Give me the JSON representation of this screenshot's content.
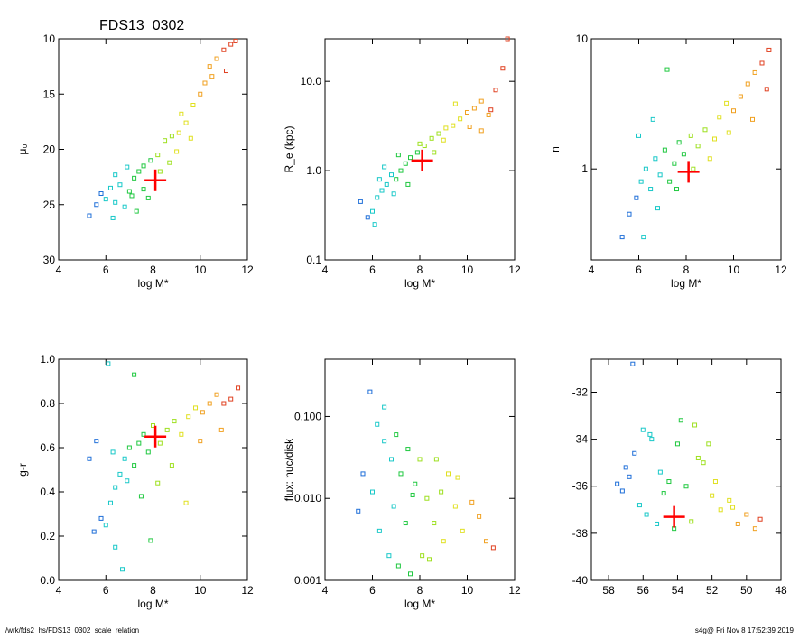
{
  "title": "FDS13_0302",
  "footer": {
    "path": "/wrk/fds2_hs/FDS13_0302_scale_relation",
    "stamp": "s4g@  Fri Nov  8 17:52:39 2019"
  },
  "colors": {
    "marker": "#ff0000",
    "palette": [
      "#2a2aa8",
      "#1e6ed8",
      "#18c8c8",
      "#20c840",
      "#9ee020",
      "#e0e020",
      "#f0a020",
      "#e04020"
    ]
  },
  "chart_data": [
    {
      "type": "scatter",
      "xlabel": "log M*",
      "ylabel": "μ₀",
      "xlim": [
        4,
        12
      ],
      "ylim": [
        30,
        10
      ],
      "yscale": "linear",
      "reversed_y": true,
      "xticks": [
        "4",
        "6",
        "8",
        "10",
        "12"
      ],
      "yticks": [
        "10",
        "15",
        "20",
        "25",
        "30"
      ],
      "ytick_values": [
        10,
        15,
        20,
        25,
        30
      ],
      "marker": {
        "x": 8.1,
        "y": 22.8
      },
      "points": [
        [
          6.0,
          24.5
        ],
        [
          6.2,
          23.5
        ],
        [
          6.4,
          24.8
        ],
        [
          6.6,
          23.2
        ],
        [
          6.8,
          25.2
        ],
        [
          7.0,
          23.8
        ],
        [
          7.2,
          22.6
        ],
        [
          7.4,
          22.0
        ],
        [
          7.6,
          21.5
        ],
        [
          7.9,
          21.0
        ],
        [
          8.2,
          20.5
        ],
        [
          8.5,
          19.2
        ],
        [
          8.8,
          18.8
        ],
        [
          9.1,
          18.5
        ],
        [
          9.4,
          17.6
        ],
        [
          9.7,
          16.0
        ],
        [
          10.0,
          15.0
        ],
        [
          10.2,
          14.0
        ],
        [
          10.4,
          12.5
        ],
        [
          10.7,
          11.8
        ],
        [
          11.0,
          11.0
        ],
        [
          11.3,
          10.5
        ],
        [
          11.5,
          10.2
        ],
        [
          9.2,
          16.8
        ],
        [
          5.8,
          24.0
        ],
        [
          5.6,
          25.0
        ],
        [
          5.3,
          26.0
        ],
        [
          6.3,
          26.2
        ],
        [
          7.1,
          24.2
        ],
        [
          7.6,
          23.6
        ],
        [
          8.3,
          22.0
        ],
        [
          8.7,
          21.2
        ],
        [
          6.9,
          21.6
        ],
        [
          6.4,
          22.3
        ],
        [
          7.3,
          25.6
        ],
        [
          7.8,
          24.4
        ],
        [
          9.0,
          20.2
        ],
        [
          9.6,
          19.0
        ],
        [
          10.5,
          13.4
        ],
        [
          11.1,
          12.9
        ]
      ]
    },
    {
      "type": "scatter",
      "xlabel": "log M*",
      "ylabel": "R_e (kpc)",
      "xlim": [
        4,
        12
      ],
      "ylim": [
        0.1,
        30
      ],
      "yscale": "log",
      "xticks": [
        "4",
        "6",
        "8",
        "10",
        "12"
      ],
      "yticks": [
        "0.1",
        "1.0",
        "10.0"
      ],
      "ytick_values": [
        0.1,
        1.0,
        10.0
      ],
      "marker": {
        "x": 8.1,
        "y": 1.3
      },
      "points": [
        [
          6.0,
          0.35
        ],
        [
          6.2,
          0.5
        ],
        [
          6.4,
          0.6
        ],
        [
          6.6,
          0.7
        ],
        [
          6.8,
          0.9
        ],
        [
          7.0,
          0.8
        ],
        [
          7.2,
          1.0
        ],
        [
          7.4,
          1.2
        ],
        [
          7.6,
          1.4
        ],
        [
          7.9,
          1.6
        ],
        [
          8.2,
          1.9
        ],
        [
          8.5,
          2.3
        ],
        [
          8.8,
          2.6
        ],
        [
          9.1,
          3.0
        ],
        [
          9.4,
          3.2
        ],
        [
          9.7,
          3.8
        ],
        [
          10.0,
          4.5
        ],
        [
          10.3,
          5.0
        ],
        [
          10.6,
          6.0
        ],
        [
          10.9,
          4.2
        ],
        [
          11.2,
          8.0
        ],
        [
          11.5,
          14.0
        ],
        [
          11.7,
          30.0
        ],
        [
          5.5,
          0.45
        ],
        [
          5.8,
          0.3
        ],
        [
          6.1,
          0.25
        ],
        [
          6.5,
          1.1
        ],
        [
          7.1,
          1.5
        ],
        [
          7.5,
          0.7
        ],
        [
          8.0,
          2.0
        ],
        [
          8.6,
          1.6
        ],
        [
          9.0,
          2.2
        ],
        [
          9.5,
          5.6
        ],
        [
          10.1,
          3.1
        ],
        [
          10.6,
          2.8
        ],
        [
          11.0,
          4.8
        ],
        [
          6.3,
          0.8
        ],
        [
          6.9,
          0.55
        ]
      ]
    },
    {
      "type": "scatter",
      "xlabel": "log M*",
      "ylabel": "n",
      "xlim": [
        4,
        12
      ],
      "ylim": [
        0.2,
        10
      ],
      "yscale": "log",
      "xticks": [
        "4",
        "6",
        "8",
        "10",
        "12"
      ],
      "yticks": [
        "1",
        "10"
      ],
      "ytick_values": [
        1,
        10
      ],
      "marker": {
        "x": 8.1,
        "y": 0.95
      },
      "points": [
        [
          5.3,
          0.3
        ],
        [
          5.6,
          0.45
        ],
        [
          5.9,
          0.6
        ],
        [
          6.1,
          0.8
        ],
        [
          6.3,
          1.0
        ],
        [
          6.5,
          0.7
        ],
        [
          6.7,
          1.2
        ],
        [
          6.9,
          0.9
        ],
        [
          7.1,
          1.4
        ],
        [
          7.3,
          0.8
        ],
        [
          7.5,
          1.1
        ],
        [
          7.7,
          1.6
        ],
        [
          7.9,
          1.3
        ],
        [
          8.2,
          1.8
        ],
        [
          8.5,
          1.5
        ],
        [
          8.8,
          2.0
        ],
        [
          9.0,
          1.2
        ],
        [
          9.4,
          2.5
        ],
        [
          9.7,
          3.2
        ],
        [
          10.0,
          2.8
        ],
        [
          10.3,
          3.6
        ],
        [
          10.6,
          4.5
        ],
        [
          10.9,
          5.5
        ],
        [
          11.2,
          6.5
        ],
        [
          11.5,
          8.2
        ],
        [
          7.2,
          5.8
        ],
        [
          6.2,
          0.3
        ],
        [
          6.0,
          1.8
        ],
        [
          6.8,
          0.5
        ],
        [
          7.6,
          0.7
        ],
        [
          8.3,
          1.0
        ],
        [
          9.2,
          1.7
        ],
        [
          9.8,
          1.9
        ],
        [
          10.8,
          2.4
        ],
        [
          11.4,
          4.1
        ],
        [
          6.6,
          2.4
        ]
      ]
    },
    {
      "type": "scatter",
      "xlabel": "log M*",
      "ylabel": "g-r",
      "xlim": [
        4,
        12
      ],
      "ylim": [
        0.0,
        1.0
      ],
      "yscale": "linear",
      "xticks": [
        "4",
        "6",
        "8",
        "10",
        "12"
      ],
      "yticks": [
        "0.0",
        "0.2",
        "0.4",
        "0.6",
        "0.8",
        "1.0"
      ],
      "ytick_values": [
        0.0,
        0.2,
        0.4,
        0.6,
        0.8,
        1.0
      ],
      "marker": {
        "x": 8.1,
        "y": 0.65
      },
      "points": [
        [
          5.5,
          0.22
        ],
        [
          5.8,
          0.28
        ],
        [
          6.0,
          0.25
        ],
        [
          6.2,
          0.35
        ],
        [
          6.4,
          0.42
        ],
        [
          6.6,
          0.48
        ],
        [
          6.8,
          0.55
        ],
        [
          7.0,
          0.6
        ],
        [
          7.2,
          0.52
        ],
        [
          7.4,
          0.62
        ],
        [
          7.6,
          0.66
        ],
        [
          7.8,
          0.58
        ],
        [
          8.0,
          0.7
        ],
        [
          8.3,
          0.62
        ],
        [
          8.6,
          0.68
        ],
        [
          8.9,
          0.72
        ],
        [
          9.2,
          0.66
        ],
        [
          9.5,
          0.74
        ],
        [
          9.8,
          0.78
        ],
        [
          10.1,
          0.76
        ],
        [
          10.4,
          0.8
        ],
        [
          10.7,
          0.84
        ],
        [
          11.0,
          0.8
        ],
        [
          11.3,
          0.82
        ],
        [
          11.6,
          0.87
        ],
        [
          6.1,
          0.98
        ],
        [
          7.2,
          0.93
        ],
        [
          6.7,
          0.05
        ],
        [
          6.4,
          0.15
        ],
        [
          7.9,
          0.18
        ],
        [
          5.3,
          0.55
        ],
        [
          5.6,
          0.63
        ],
        [
          6.3,
          0.58
        ],
        [
          6.9,
          0.45
        ],
        [
          7.5,
          0.38
        ],
        [
          8.2,
          0.44
        ],
        [
          8.8,
          0.52
        ],
        [
          9.4,
          0.35
        ],
        [
          10.0,
          0.63
        ],
        [
          10.9,
          0.68
        ]
      ]
    },
    {
      "type": "scatter",
      "xlabel": "log M*",
      "ylabel": "flux: nuc/disk",
      "xlim": [
        4,
        12
      ],
      "ylim": [
        0.001,
        0.5
      ],
      "yscale": "log",
      "xticks": [
        "4",
        "6",
        "8",
        "10",
        "12"
      ],
      "yticks": [
        "0.001",
        "0.010",
        "0.100"
      ],
      "ytick_values": [
        0.001,
        0.01,
        0.1
      ],
      "points": [
        [
          5.9,
          0.2
        ],
        [
          6.2,
          0.08
        ],
        [
          6.5,
          0.05
        ],
        [
          6.8,
          0.03
        ],
        [
          7.0,
          0.06
        ],
        [
          7.2,
          0.02
        ],
        [
          7.5,
          0.04
        ],
        [
          7.8,
          0.015
        ],
        [
          8.0,
          0.03
        ],
        [
          8.3,
          0.01
        ],
        [
          8.6,
          0.005
        ],
        [
          8.9,
          0.012
        ],
        [
          9.2,
          0.02
        ],
        [
          9.5,
          0.008
        ],
        [
          9.8,
          0.004
        ],
        [
          10.2,
          0.009
        ],
        [
          10.5,
          0.006
        ],
        [
          10.8,
          0.003
        ],
        [
          11.1,
          0.0025
        ],
        [
          6.3,
          0.004
        ],
        [
          6.7,
          0.002
        ],
        [
          7.1,
          0.0015
        ],
        [
          7.6,
          0.0012
        ],
        [
          8.1,
          0.002
        ],
        [
          8.4,
          0.0018
        ],
        [
          6.0,
          0.012
        ],
        [
          5.6,
          0.02
        ],
        [
          6.9,
          0.008
        ],
        [
          7.4,
          0.005
        ],
        [
          8.7,
          0.03
        ],
        [
          9.0,
          0.003
        ],
        [
          5.4,
          0.007
        ],
        [
          9.6,
          0.018
        ],
        [
          6.5,
          0.13
        ],
        [
          7.7,
          0.011
        ]
      ]
    },
    {
      "type": "scatter",
      "xlabel": "",
      "ylabel": "",
      "xlim": [
        59,
        48
      ],
      "ylim": [
        -40,
        -30.6
      ],
      "yscale": "linear",
      "xticks": [
        "58",
        "56",
        "54",
        "52",
        "50",
        "48"
      ],
      "yticks": [
        "-40",
        "-38",
        "-36",
        "-34",
        "-32"
      ],
      "xtick_values": [
        58,
        56,
        54,
        52,
        50,
        48
      ],
      "ytick_values": [
        -40,
        -38,
        -36,
        -34,
        -32
      ],
      "marker": {
        "x": 54.2,
        "y": -37.3
      },
      "points": [
        [
          57.5,
          -35.9
        ],
        [
          57.0,
          -35.2
        ],
        [
          56.5,
          -34.6
        ],
        [
          56.0,
          -33.6
        ],
        [
          55.5,
          -34.0
        ],
        [
          55.0,
          -35.4
        ],
        [
          54.5,
          -35.8
        ],
        [
          54.0,
          -34.2
        ],
        [
          53.5,
          -36.0
        ],
        [
          53.0,
          -33.4
        ],
        [
          52.5,
          -35.0
        ],
        [
          52.0,
          -36.4
        ],
        [
          51.5,
          -37.0
        ],
        [
          51.0,
          -36.6
        ],
        [
          50.5,
          -37.6
        ],
        [
          50.0,
          -37.2
        ],
        [
          49.5,
          -37.8
        ],
        [
          49.2,
          -37.4
        ],
        [
          56.2,
          -36.8
        ],
        [
          55.8,
          -37.2
        ],
        [
          55.2,
          -37.6
        ],
        [
          54.2,
          -37.8
        ],
        [
          53.2,
          -37.5
        ],
        [
          52.8,
          -34.8
        ],
        [
          53.8,
          -33.2
        ],
        [
          55.6,
          -33.8
        ],
        [
          56.8,
          -35.6
        ],
        [
          57.2,
          -36.2
        ],
        [
          54.8,
          -36.3
        ],
        [
          52.2,
          -34.2
        ],
        [
          51.8,
          -35.8
        ],
        [
          50.8,
          -36.9
        ],
        [
          56.6,
          -30.8
        ]
      ]
    }
  ]
}
